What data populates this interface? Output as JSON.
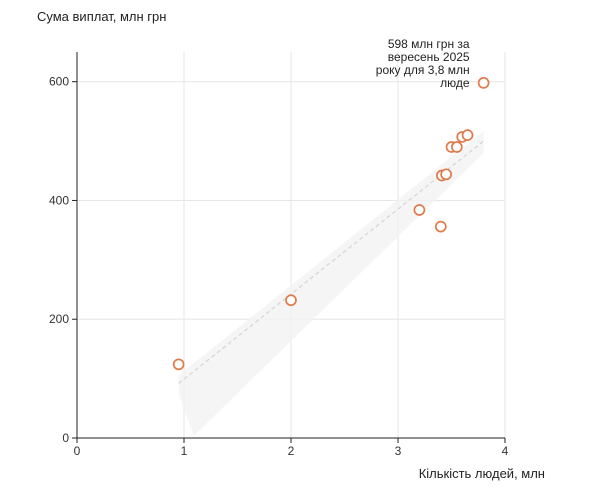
{
  "chart_data": {
    "type": "scatter",
    "title": "",
    "xlabel": "Кількість людей, млн",
    "ylabel": "Сума виплат, млн грн",
    "xlim": [
      0,
      4
    ],
    "ylim": [
      0,
      650
    ],
    "x_ticks": [
      0,
      1,
      2,
      3,
      4
    ],
    "y_ticks": [
      0,
      200,
      400,
      600
    ],
    "grid": true,
    "legend": "none",
    "colors": {
      "point_stroke": "#e07a4a",
      "trend_line": "#d4d4d4",
      "confidence_band": "#f3f3f3"
    },
    "series": [
      {
        "points": [
          {
            "x": 0.95,
            "y": 124
          },
          {
            "x": 2.0,
            "y": 232
          },
          {
            "x": 3.2,
            "y": 384
          },
          {
            "x": 3.4,
            "y": 356
          },
          {
            "x": 3.41,
            "y": 442
          },
          {
            "x": 3.45,
            "y": 444
          },
          {
            "x": 3.5,
            "y": 490
          },
          {
            "x": 3.55,
            "y": 490
          },
          {
            "x": 3.6,
            "y": 507
          },
          {
            "x": 3.65,
            "y": 510
          },
          {
            "x": 3.8,
            "y": 598
          }
        ]
      }
    ],
    "trend": {
      "from": [
        0.95,
        92
      ],
      "to": [
        3.8,
        500
      ]
    },
    "annotation": {
      "text_lines": [
        "598 млн грн за",
        "вересень 2025",
        "року для 3,8 млн",
        "люде"
      ],
      "target": [
        3.8,
        598
      ]
    }
  }
}
